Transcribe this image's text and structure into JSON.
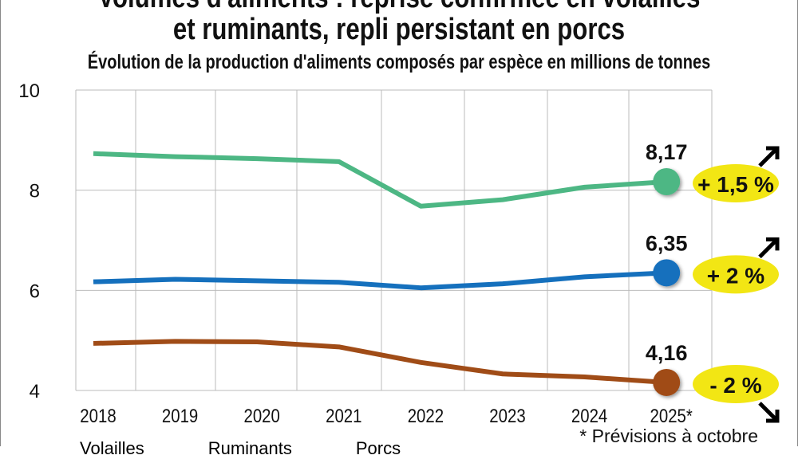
{
  "header": {
    "title_line1": "Volumes d'aliments : reprise confirmée en volailles",
    "title_line2": "et ruminants, repli persistant en porcs",
    "subtitle": "Évolution de la production d'aliments composés par espèce en millions de tonnes"
  },
  "chart_data": {
    "type": "line",
    "title": "Volumes d'aliments : reprise confirmée en volailles et ruminants, repli persistant en porcs",
    "subtitle": "Évolution de la production d'aliments composés par espèce en millions de tonnes",
    "categories": [
      "2018",
      "2019",
      "2020",
      "2021",
      "2022",
      "2023",
      "2024",
      "2025*"
    ],
    "ylim": [
      4,
      10
    ],
    "yticks": [
      "4",
      "6",
      "8",
      "10"
    ],
    "grid": true,
    "legend": "bottom",
    "footnote": "* Prévisions à octobre",
    "series": [
      {
        "name": "Volailles",
        "color": "#4db784",
        "values": [
          8.73,
          8.67,
          8.63,
          8.57,
          7.68,
          7.81,
          8.06,
          8.17
        ],
        "last_label": "8,17",
        "change": "+ 1,5 %",
        "trend": "up"
      },
      {
        "name": "Ruminants",
        "color": "#1570bd",
        "values": [
          6.17,
          6.22,
          6.19,
          6.16,
          6.05,
          6.13,
          6.27,
          6.35
        ],
        "last_label": "6,35",
        "change": "+ 2 %",
        "trend": "up"
      },
      {
        "name": "Porcs",
        "color": "#a04c17",
        "values": [
          4.94,
          4.98,
          4.97,
          4.87,
          4.56,
          4.33,
          4.27,
          4.16
        ],
        "last_label": "4,16",
        "change": "- 2 %",
        "trend": "down"
      }
    ],
    "badge_color": "#f2e614"
  }
}
